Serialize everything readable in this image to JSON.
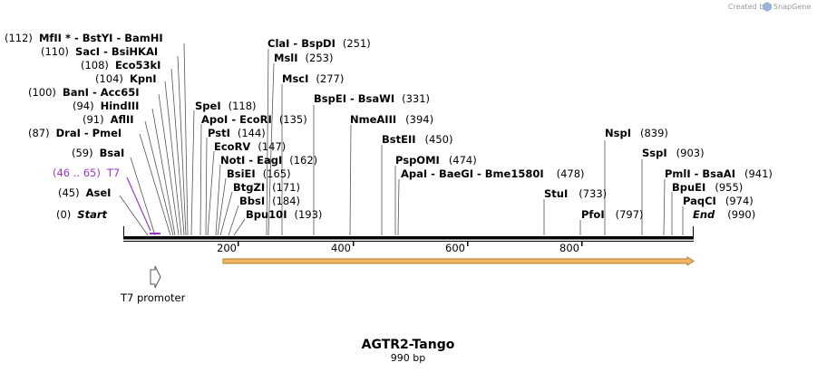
{
  "credit": {
    "prefix": "Created by",
    "brand": "SnapGene"
  },
  "title": "AGTR2-Tango",
  "length_label": "990 bp",
  "accent_colors": {
    "map_line": "#000000",
    "feature_arrow": "#f2b766",
    "feature_arrow_edge": "#b07a24",
    "primer": "#9b38c9",
    "promoter_outline": "#555555"
  },
  "promoter": {
    "label": "T7 promoter",
    "icon": "promoter-arrow-icon"
  },
  "ticks": [
    "200",
    "400",
    "600",
    "800"
  ],
  "sites": [
    {
      "pos": "(112)",
      "names": [
        "MfII *",
        "BstYI",
        "BamHI"
      ]
    },
    {
      "pos": "(110)",
      "names": [
        "SacI",
        "BsiHKAI"
      ]
    },
    {
      "pos": "(108)",
      "names": [
        "Eco53kI"
      ]
    },
    {
      "pos": "(104)",
      "names": [
        "KpnI"
      ]
    },
    {
      "pos": "(100)",
      "names": [
        "BanI",
        "Acc65I"
      ]
    },
    {
      "pos": "(94)",
      "names": [
        "HindIII"
      ]
    },
    {
      "pos": "(91)",
      "names": [
        "AflII"
      ]
    },
    {
      "pos": "(87)",
      "names": [
        "DraI",
        "PmeI"
      ]
    },
    {
      "pos": "(59)",
      "names": [
        "BsaI"
      ]
    },
    {
      "pos": "(46 .. 65)",
      "names": [
        "T7"
      ]
    },
    {
      "pos": "(45)",
      "names": [
        "AseI"
      ]
    },
    {
      "pos": "(0)",
      "names": [
        "Start"
      ]
    },
    {
      "pos": "(118)",
      "names": [
        "SpeI"
      ]
    },
    {
      "pos": "(135)",
      "names": [
        "ApoI",
        "EcoRI"
      ]
    },
    {
      "pos": "(144)",
      "names": [
        "PstI"
      ]
    },
    {
      "pos": "(147)",
      "names": [
        "EcoRV"
      ]
    },
    {
      "pos": "(162)",
      "names": [
        "NotI",
        "EagI"
      ]
    },
    {
      "pos": "(165)",
      "names": [
        "BsiEI"
      ]
    },
    {
      "pos": "(171)",
      "names": [
        "BtgZI"
      ]
    },
    {
      "pos": "(184)",
      "names": [
        "BbsI"
      ]
    },
    {
      "pos": "(193)",
      "names": [
        "Bpu10I"
      ]
    },
    {
      "pos": "(251)",
      "names": [
        "ClaI",
        "BspDI"
      ]
    },
    {
      "pos": "(253)",
      "names": [
        "MslI"
      ]
    },
    {
      "pos": "(277)",
      "names": [
        "MscI"
      ]
    },
    {
      "pos": "(331)",
      "names": [
        "BspEI",
        "BsaWI"
      ]
    },
    {
      "pos": "(394)",
      "names": [
        "NmeAIII"
      ]
    },
    {
      "pos": "(450)",
      "names": [
        "BstEII"
      ]
    },
    {
      "pos": "(474)",
      "names": [
        "PspOMI"
      ]
    },
    {
      "pos": "(478)",
      "names": [
        "ApaI",
        "BaeGI",
        "Bme1580I"
      ]
    },
    {
      "pos": "(733)",
      "names": [
        "StuI"
      ]
    },
    {
      "pos": "(797)",
      "names": [
        "PfoI"
      ]
    },
    {
      "pos": "(839)",
      "names": [
        "NspI"
      ]
    },
    {
      "pos": "(903)",
      "names": [
        "SspI"
      ]
    },
    {
      "pos": "(941)",
      "names": [
        "PmlI",
        "BsaAI"
      ]
    },
    {
      "pos": "(955)",
      "names": [
        "BpuEI"
      ]
    },
    {
      "pos": "(974)",
      "names": [
        "PaqCI"
      ]
    },
    {
      "pos": "(990)",
      "names": [
        "End"
      ]
    }
  ]
}
